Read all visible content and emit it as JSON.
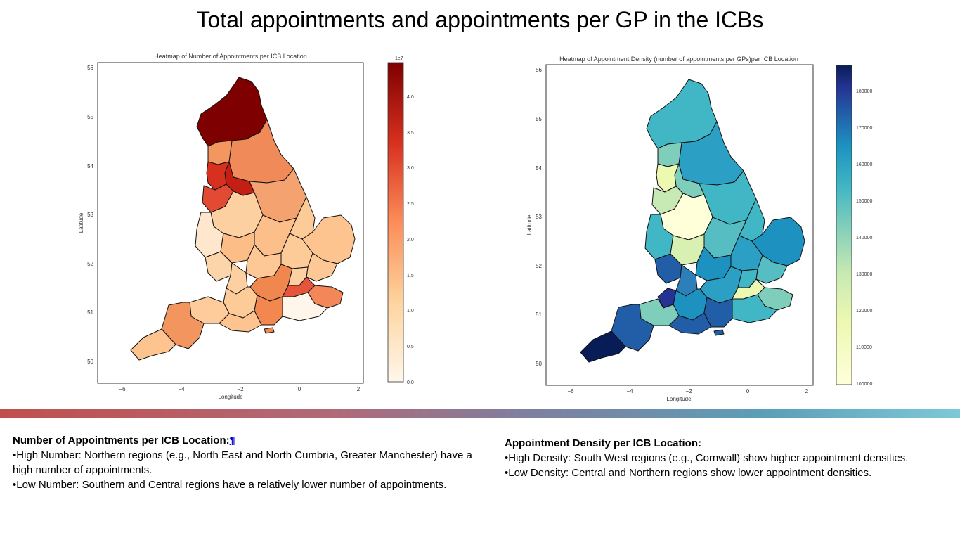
{
  "slide": {
    "title": "Total appointments and appointments per GP in the ICBs"
  },
  "maps": [
    {
      "id": "left",
      "title": "Heatmap of Number of Appointments per ICB Location",
      "xlabel": "Longitude",
      "ylabel": "Latitude",
      "x_ticks": [
        "−6",
        "−4",
        "−2",
        "0",
        "2"
      ],
      "y_ticks": [
        "50",
        "51",
        "52",
        "53",
        "54",
        "55",
        "56"
      ],
      "colorbar": {
        "colormap": "OrRd",
        "exponent_label": "1e7",
        "range": [
          0,
          4.5
        ],
        "ticks": [
          "0.0",
          "0.5",
          "1.0",
          "1.5",
          "2.0",
          "2.5",
          "3.0",
          "3.5",
          "4.0"
        ]
      },
      "highlight": "North East and North Cumbria (darkest red)"
    },
    {
      "id": "right",
      "title": "Heatmap of Appointment Density (number of appointments per GPs)per ICB Location",
      "xlabel": "Longitude",
      "ylabel": "Latitude",
      "x_ticks": [
        "−6",
        "−4",
        "−2",
        "0",
        "2"
      ],
      "y_ticks": [
        "50",
        "51",
        "52",
        "53",
        "54",
        "55",
        "56"
      ],
      "colorbar": {
        "colormap": "YlGnBu",
        "range": [
          100000,
          187000
        ],
        "ticks": [
          "100000",
          "110000",
          "120000",
          "130000",
          "140000",
          "150000",
          "160000",
          "170000",
          "180000"
        ]
      },
      "highlight": "Cornwall (darkest blue)"
    }
  ],
  "notes": {
    "left": {
      "heading": "Number of Appointments per ICB Location:",
      "pilcrow": "¶",
      "lines": [
        "•High Number: Northern regions (e.g., North East and North Cumbria, Greater Manchester) have a high number of appointments.",
        "•Low Number: Southern and Central regions have a relatively lower number of appointments."
      ]
    },
    "right": {
      "heading": "Appointment Density per ICB Location:",
      "lines": [
        "•High Density: South West regions (e.g., Cornwall) show higher appointment densities.",
        "•Low Density: Central and Northern regions show lower appointment densities."
      ]
    }
  }
}
